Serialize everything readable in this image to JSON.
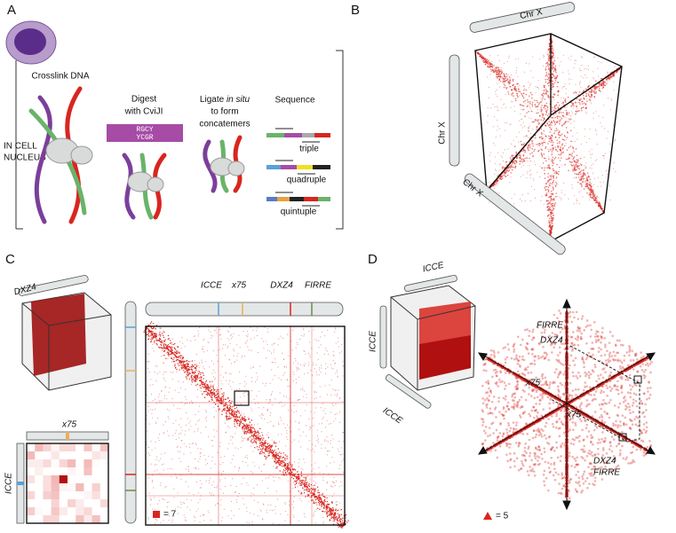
{
  "panel_a": {
    "label": "A",
    "nucleus_label": [
      "IN CELL",
      "NUCLEUS"
    ],
    "steps": [
      [
        "Crosslink DNA"
      ],
      [
        "Digest",
        "with CviJI"
      ],
      [
        "Ligate",
        "in situ",
        "to form",
        "concatemers"
      ],
      [
        "Sequence"
      ]
    ],
    "enzyme_site": [
      "RGCY",
      "YCGR"
    ],
    "products": [
      "triple",
      "quadruple",
      "quintuple"
    ]
  },
  "panel_b": {
    "label": "B",
    "axis_labels": [
      "Chr X",
      "Chr X",
      "Chr X"
    ]
  },
  "panel_c": {
    "label": "C",
    "cube_label": "DXZ4",
    "inset_x_label": "x75",
    "inset_y_label": "ICCE",
    "loci": [
      "ICCE",
      "x75",
      "DXZ4",
      "FIRRE"
    ],
    "legend": "= 7"
  },
  "panel_d": {
    "label": "D",
    "cube_labels": [
      "ICCE",
      "ICCE",
      "ICCE"
    ],
    "plot_labels": [
      "FIRRE",
      "DXZ4",
      "x75",
      "x75",
      "DXZ4",
      "FIRRE"
    ],
    "legend": "= 5"
  }
}
